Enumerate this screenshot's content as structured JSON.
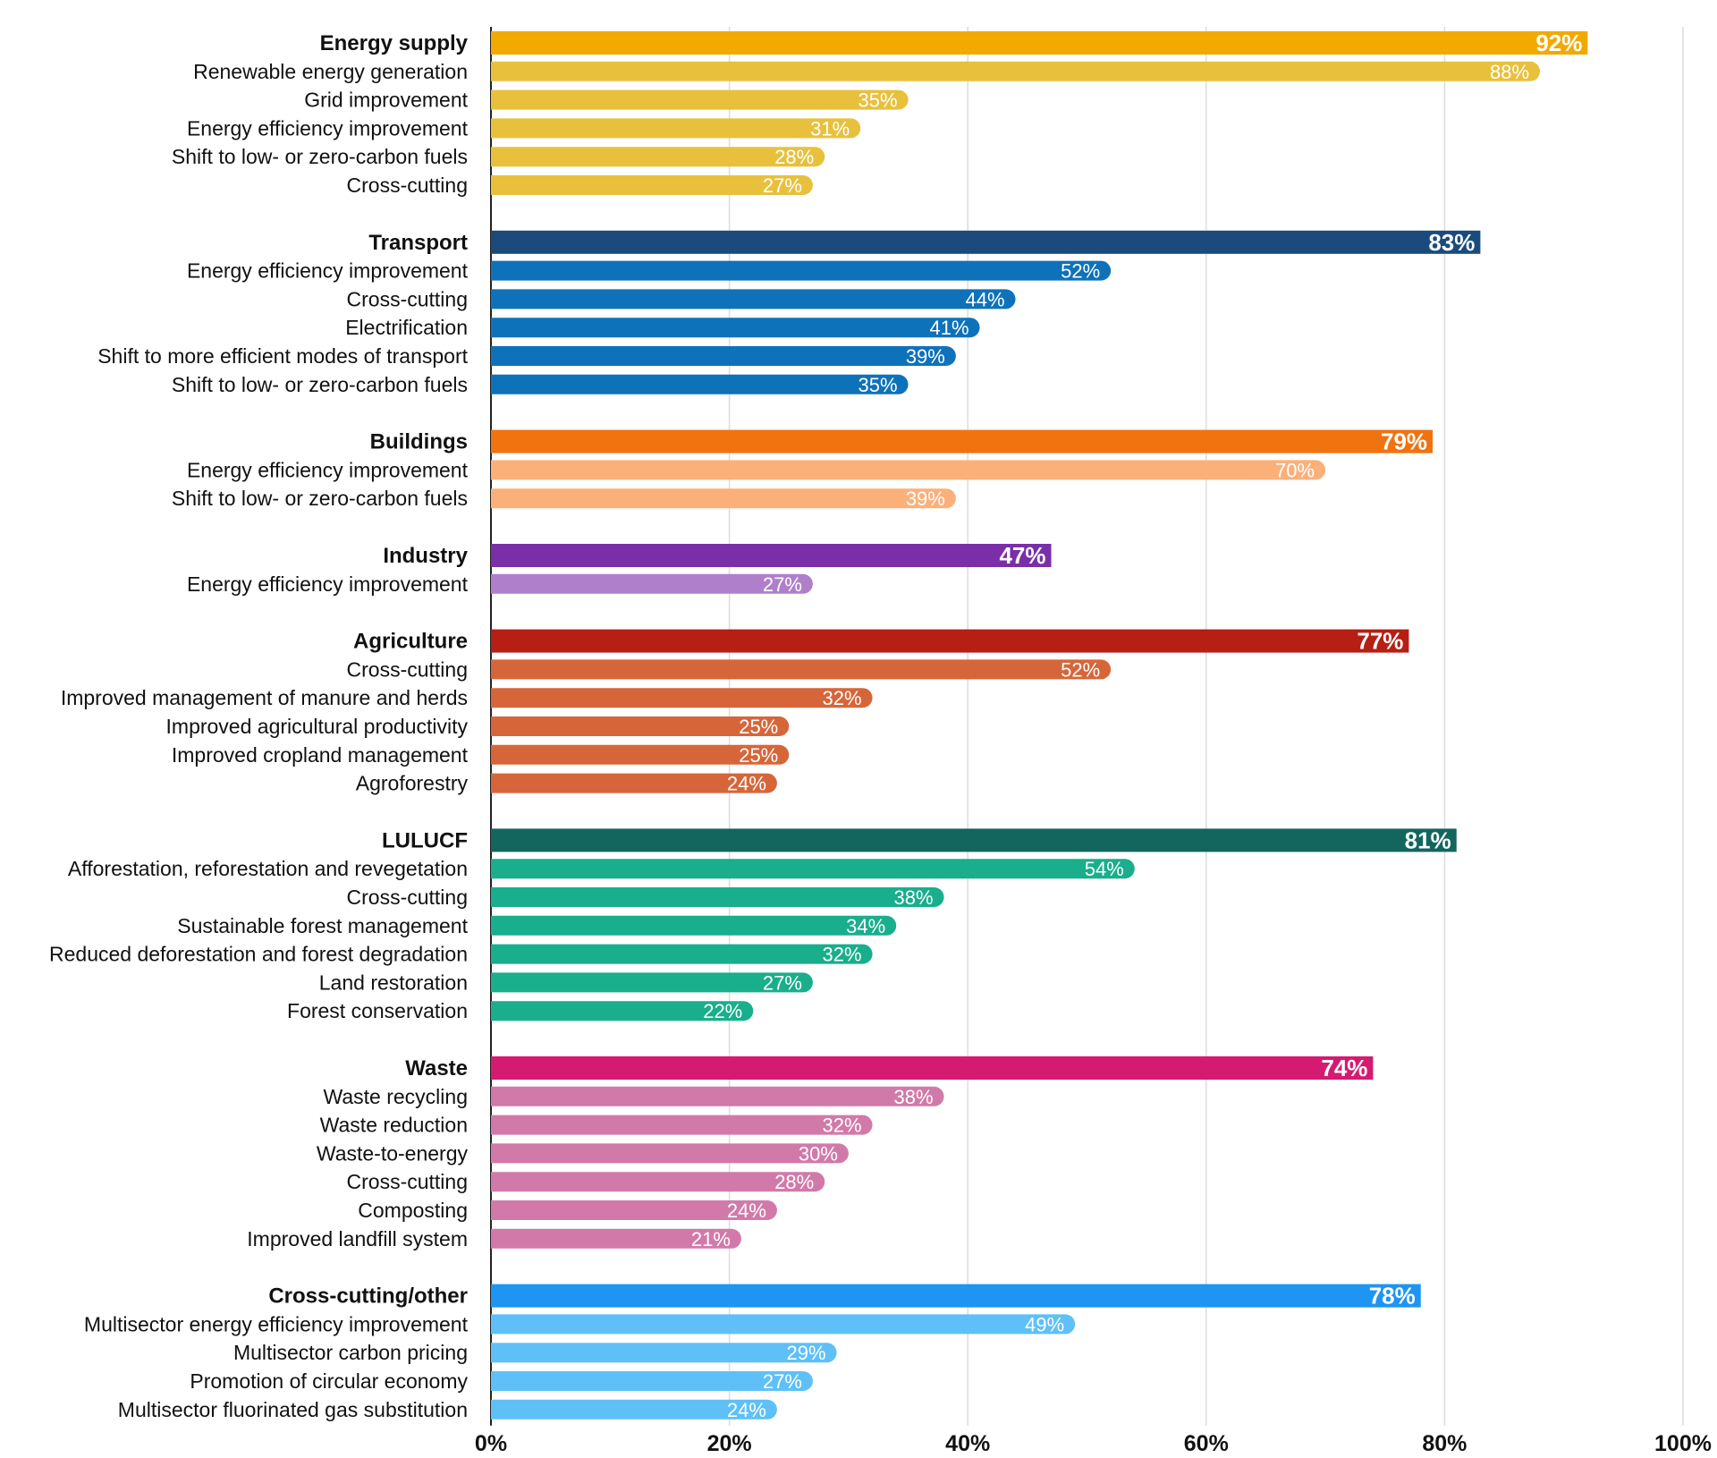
{
  "chart_data": {
    "type": "bar",
    "orientation": "horizontal",
    "title": "",
    "xlabel": "",
    "ylabel": "",
    "xlim": [
      0,
      100
    ],
    "x_ticks": [
      "0%",
      "20%",
      "40%",
      "60%",
      "80%",
      "100%"
    ],
    "x_tick_values": [
      0,
      20,
      40,
      60,
      80,
      100
    ],
    "grid": true,
    "value_suffix": "%",
    "groups": [
      {
        "name": "Energy supply",
        "value": 92,
        "color": "#F2A900",
        "sub_color": "#E8C03C",
        "items": [
          {
            "label": "Renewable energy generation",
            "value": 88
          },
          {
            "label": "Grid improvement",
            "value": 35
          },
          {
            "label": "Energy efficiency improvement",
            "value": 31
          },
          {
            "label": "Shift to low- or zero-carbon fuels",
            "value": 28
          },
          {
            "label": "Cross-cutting",
            "value": 27
          }
        ]
      },
      {
        "name": "Transport",
        "value": 83,
        "color": "#1A4B7C",
        "sub_color": "#0E72BA",
        "items": [
          {
            "label": "Energy efficiency improvement",
            "value": 52
          },
          {
            "label": "Cross-cutting",
            "value": 44
          },
          {
            "label": "Electrification",
            "value": 41
          },
          {
            "label": "Shift to more efficient modes of transport",
            "value": 39
          },
          {
            "label": "Shift to low- or zero-carbon fuels",
            "value": 35
          }
        ]
      },
      {
        "name": "Buildings",
        "value": 79,
        "color": "#F07310",
        "sub_color": "#FBB07A",
        "items": [
          {
            "label": "Energy efficiency improvement",
            "value": 70
          },
          {
            "label": "Shift to low- or zero-carbon fuels",
            "value": 39
          }
        ]
      },
      {
        "name": "Industry",
        "value": 47,
        "color": "#7A2FA8",
        "sub_color": "#B07FCC",
        "items": [
          {
            "label": "Energy efficiency improvement",
            "value": 27
          }
        ]
      },
      {
        "name": "Agriculture",
        "value": 77,
        "color": "#B51F14",
        "sub_color": "#D6663A",
        "items": [
          {
            "label": "Cross-cutting",
            "value": 52
          },
          {
            "label": "Improved management of manure and herds",
            "value": 32
          },
          {
            "label": "Improved agricultural productivity",
            "value": 25
          },
          {
            "label": "Improved cropland management",
            "value": 25
          },
          {
            "label": "Agroforestry",
            "value": 24
          }
        ]
      },
      {
        "name": "LULUCF",
        "value": 81,
        "color": "#12665E",
        "sub_color": "#19AE8C",
        "items": [
          {
            "label": "Afforestation, reforestation and revegetation",
            "value": 54
          },
          {
            "label": "Cross-cutting",
            "value": 38
          },
          {
            "label": "Sustainable forest management",
            "value": 34
          },
          {
            "label": "Reduced deforestation and forest degradation",
            "value": 32
          },
          {
            "label": "Land restoration",
            "value": 27
          },
          {
            "label": "Forest conservation",
            "value": 22
          }
        ]
      },
      {
        "name": "Waste",
        "value": 74,
        "color": "#D51A72",
        "sub_color": "#D17AAA",
        "items": [
          {
            "label": "Waste recycling",
            "value": 38
          },
          {
            "label": "Waste reduction",
            "value": 32
          },
          {
            "label": "Waste-to-energy",
            "value": 30
          },
          {
            "label": "Cross-cutting",
            "value": 28
          },
          {
            "label": "Composting",
            "value": 24
          },
          {
            "label": "Improved landfill system",
            "value": 21
          }
        ]
      },
      {
        "name": "Cross-cutting/other",
        "value": 78,
        "color": "#1E95F2",
        "sub_color": "#5EC0F7",
        "items": [
          {
            "label": "Multisector energy efficiency improvement",
            "value": 49
          },
          {
            "label": "Multisector carbon pricing",
            "value": 29
          },
          {
            "label": "Promotion of circular economy",
            "value": 27
          },
          {
            "label": "Multisector fluorinated gas substitution",
            "value": 24
          }
        ]
      }
    ]
  }
}
